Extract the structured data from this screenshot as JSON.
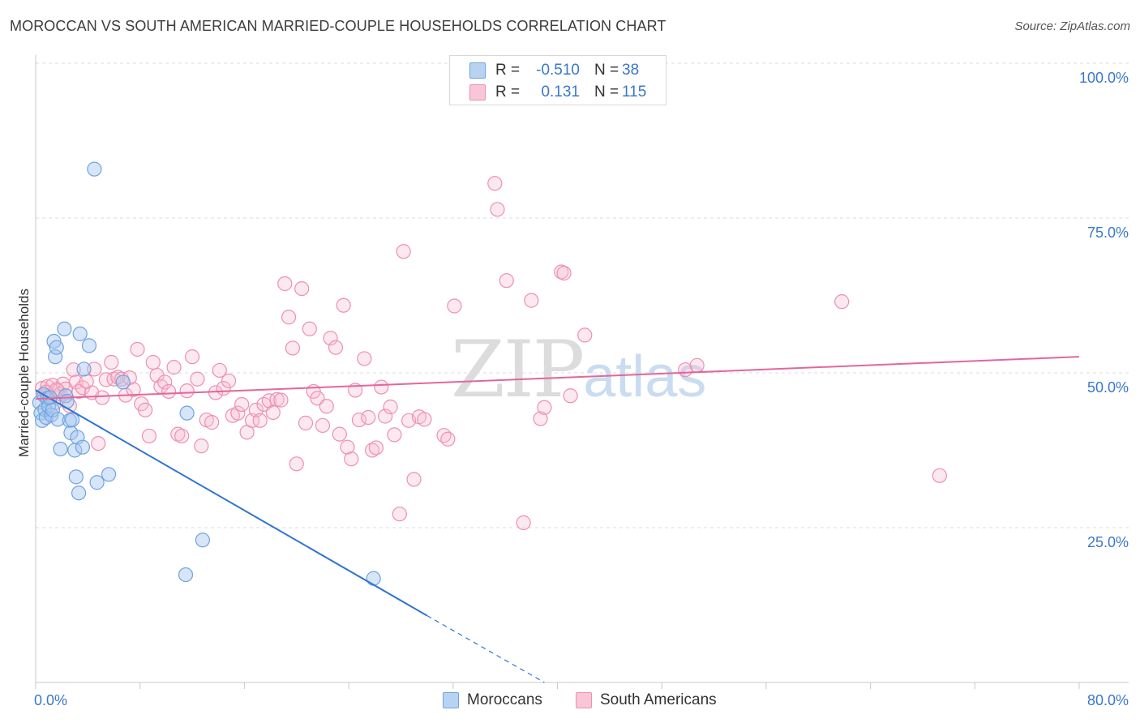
{
  "header": {
    "title": "MOROCCAN VS SOUTH AMERICAN MARRIED-COUPLE HOUSEHOLDS CORRELATION CHART",
    "source": "Source: ZipAtlas.com"
  },
  "watermark": {
    "zip": "ZIP",
    "atlas": "atlas"
  },
  "legend": {
    "rows": [
      {
        "r_label": "R =",
        "r_value": "-0.510",
        "n_label": "N =",
        "n_value": "38",
        "color": "#6fa3e0",
        "fill": "#b8d3f2"
      },
      {
        "r_label": "R =",
        "r_value": "0.131",
        "n_label": "N =",
        "n_value": "115",
        "color": "#ee8fb0",
        "fill": "#f8c6d6"
      }
    ]
  },
  "bottom_legend": {
    "items": [
      {
        "label": "Moroccans",
        "color": "#6fa3e0",
        "fill": "#b8d3f2"
      },
      {
        "label": "South Americans",
        "color": "#ee8fb0",
        "fill": "#f8c6d6"
      }
    ]
  },
  "chart_data": {
    "type": "scatter",
    "title": "MOROCCAN VS SOUTH AMERICAN MARRIED-COUPLE HOUSEHOLDS CORRELATION CHART",
    "xlabel": "",
    "ylabel": "Married-couple Households",
    "xlim": [
      0,
      80
    ],
    "ylim": [
      0,
      100
    ],
    "x_tick_labels": [
      "0.0%",
      "80.0%"
    ],
    "y_ticks": [
      25,
      50,
      75,
      100
    ],
    "y_tick_labels": [
      "25.0%",
      "50.0%",
      "75.0%",
      "100.0%"
    ],
    "grid": "horizontal dashed",
    "legend_position": "top-center",
    "colors": {
      "moroccans": "#3a7fd5",
      "south_americans": "#e8709a"
    },
    "series": [
      {
        "name": "Moroccans",
        "r": -0.51,
        "n": 38,
        "trend": {
          "x": [
            0,
            30
          ],
          "y": [
            47.2,
            10.8
          ],
          "dashed_to": [
            39,
            0
          ]
        },
        "points": [
          [
            0.3,
            45.2
          ],
          [
            0.4,
            43.5
          ],
          [
            0.5,
            42.3
          ],
          [
            0.6,
            46.5
          ],
          [
            0.7,
            44.1
          ],
          [
            0.8,
            42.8
          ],
          [
            0.9,
            45.9
          ],
          [
            1.0,
            44.6
          ],
          [
            1.1,
            46.0
          ],
          [
            1.2,
            43.2
          ],
          [
            1.3,
            44.0
          ],
          [
            1.4,
            55.1
          ],
          [
            1.5,
            52.6
          ],
          [
            1.6,
            54.1
          ],
          [
            1.7,
            42.5
          ],
          [
            1.9,
            37.7
          ],
          [
            2.2,
            57.1
          ],
          [
            2.3,
            46.3
          ],
          [
            2.4,
            45.4
          ],
          [
            2.6,
            42.3
          ],
          [
            2.7,
            40.3
          ],
          [
            2.8,
            42.4
          ],
          [
            3.0,
            37.5
          ],
          [
            3.1,
            33.2
          ],
          [
            3.2,
            39.6
          ],
          [
            3.3,
            30.6
          ],
          [
            3.4,
            56.3
          ],
          [
            3.6,
            38.0
          ],
          [
            3.7,
            50.6
          ],
          [
            4.1,
            54.4
          ],
          [
            4.5,
            82.9
          ],
          [
            4.7,
            32.3
          ],
          [
            5.6,
            33.6
          ],
          [
            6.7,
            48.5
          ],
          [
            11.5,
            17.4
          ],
          [
            11.6,
            43.5
          ],
          [
            12.8,
            23.0
          ],
          [
            25.9,
            16.8
          ]
        ]
      },
      {
        "name": "South Americans",
        "r": 0.131,
        "n": 115,
        "trend": {
          "x": [
            0,
            80
          ],
          "y": [
            45.8,
            52.6
          ]
        },
        "points": [
          [
            0.5,
            47.5
          ],
          [
            0.7,
            46.2
          ],
          [
            0.9,
            47.8
          ],
          [
            1.1,
            46.0
          ],
          [
            1.3,
            48.0
          ],
          [
            1.5,
            45.2
          ],
          [
            1.7,
            47.1
          ],
          [
            1.9,
            46.6
          ],
          [
            2.1,
            48.2
          ],
          [
            2.3,
            47.4
          ],
          [
            2.6,
            44.7
          ],
          [
            2.9,
            50.5
          ],
          [
            3.1,
            48.5
          ],
          [
            3.3,
            47.0
          ],
          [
            3.6,
            47.6
          ],
          [
            4.3,
            46.8
          ],
          [
            4.5,
            50.6
          ],
          [
            4.8,
            38.6
          ],
          [
            5.1,
            46.0
          ],
          [
            5.4,
            48.9
          ],
          [
            5.8,
            51.7
          ],
          [
            6.0,
            49.0
          ],
          [
            6.3,
            49.3
          ],
          [
            6.6,
            49.0
          ],
          [
            6.9,
            46.4
          ],
          [
            7.2,
            49.2
          ],
          [
            7.5,
            47.3
          ],
          [
            7.8,
            53.8
          ],
          [
            8.1,
            45.0
          ],
          [
            8.4,
            44.0
          ],
          [
            8.7,
            39.8
          ],
          [
            9.0,
            51.7
          ],
          [
            9.3,
            49.6
          ],
          [
            9.6,
            47.8
          ],
          [
            9.9,
            48.5
          ],
          [
            10.2,
            47.0
          ],
          [
            10.6,
            50.9
          ],
          [
            10.9,
            40.1
          ],
          [
            11.2,
            39.8
          ],
          [
            11.6,
            47.1
          ],
          [
            12.0,
            52.6
          ],
          [
            12.4,
            49.0
          ],
          [
            12.7,
            38.2
          ],
          [
            13.1,
            42.4
          ],
          [
            13.5,
            42.0
          ],
          [
            13.8,
            46.8
          ],
          [
            14.1,
            50.4
          ],
          [
            14.4,
            47.5
          ],
          [
            14.8,
            48.7
          ],
          [
            15.1,
            43.1
          ],
          [
            15.5,
            43.5
          ],
          [
            15.8,
            44.9
          ],
          [
            16.2,
            40.4
          ],
          [
            16.6,
            42.3
          ],
          [
            16.9,
            44.0
          ],
          [
            17.2,
            42.3
          ],
          [
            17.5,
            44.9
          ],
          [
            17.9,
            45.5
          ],
          [
            18.2,
            43.6
          ],
          [
            18.5,
            45.7
          ],
          [
            18.8,
            45.6
          ],
          [
            19.1,
            64.4
          ],
          [
            19.4,
            59.0
          ],
          [
            19.7,
            54.0
          ],
          [
            20.0,
            35.3
          ],
          [
            20.4,
            63.6
          ],
          [
            20.7,
            41.9
          ],
          [
            21.0,
            57.1
          ],
          [
            21.3,
            47.0
          ],
          [
            21.6,
            45.9
          ],
          [
            22.0,
            41.5
          ],
          [
            22.3,
            44.6
          ],
          [
            22.6,
            55.6
          ],
          [
            23.0,
            54.1
          ],
          [
            23.3,
            40.1
          ],
          [
            23.6,
            60.9
          ],
          [
            23.9,
            38.0
          ],
          [
            24.2,
            36.1
          ],
          [
            24.5,
            47.2
          ],
          [
            24.8,
            42.4
          ],
          [
            25.2,
            52.3
          ],
          [
            25.5,
            42.8
          ],
          [
            25.8,
            37.5
          ],
          [
            26.1,
            37.9
          ],
          [
            26.5,
            47.7
          ],
          [
            26.8,
            43.0
          ],
          [
            27.2,
            44.5
          ],
          [
            27.5,
            40.0
          ],
          [
            27.9,
            27.2
          ],
          [
            28.2,
            69.6
          ],
          [
            28.6,
            42.3
          ],
          [
            29.0,
            32.8
          ],
          [
            29.4,
            42.9
          ],
          [
            29.8,
            42.5
          ],
          [
            31.3,
            39.9
          ],
          [
            31.6,
            39.3
          ],
          [
            32.1,
            60.8
          ],
          [
            35.2,
            80.6
          ],
          [
            35.4,
            76.4
          ],
          [
            36.1,
            64.9
          ],
          [
            37.4,
            25.8
          ],
          [
            38.0,
            61.7
          ],
          [
            38.7,
            42.6
          ],
          [
            39.0,
            44.4
          ],
          [
            40.3,
            66.3
          ],
          [
            40.5,
            66.1
          ],
          [
            41.0,
            46.3
          ],
          [
            42.1,
            56.1
          ],
          [
            49.8,
            50.5
          ],
          [
            50.7,
            51.2
          ],
          [
            61.8,
            61.5
          ],
          [
            69.3,
            33.4
          ],
          [
            0.8,
            46.9
          ],
          [
            1.6,
            47.3
          ],
          [
            3.9,
            48.6
          ]
        ]
      }
    ]
  }
}
